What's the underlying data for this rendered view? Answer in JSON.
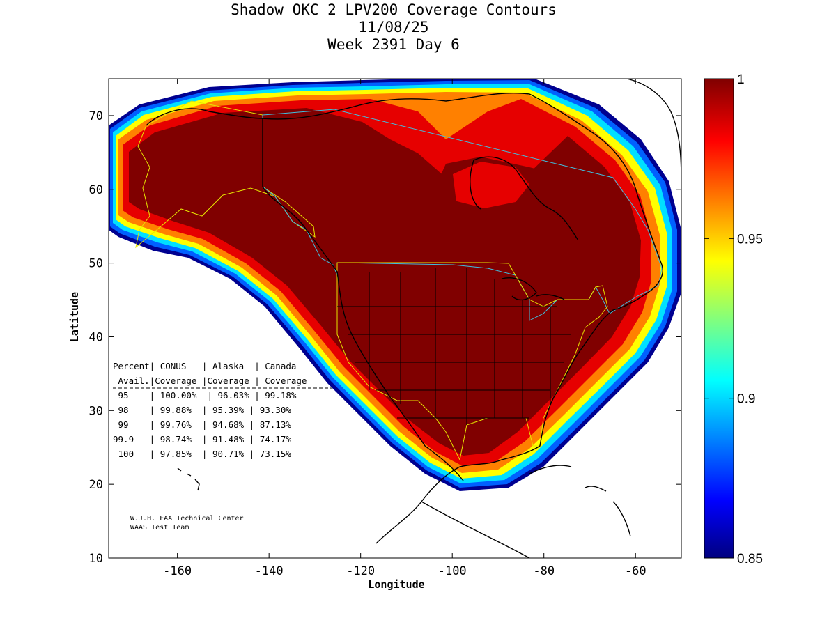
{
  "title": {
    "line1": "Shadow OKC 2 LPV200 Coverage Contours",
    "line2": "11/08/25",
    "line3": "Week 2391 Day 6"
  },
  "axes": {
    "xlabel": "Longitude",
    "ylabel": "Latitude",
    "xlim": [
      -175,
      -50
    ],
    "ylim": [
      10,
      75
    ],
    "xticks": [
      -160,
      -140,
      -120,
      -100,
      -80,
      -60
    ],
    "xtick_labels": [
      "-160",
      "-140",
      "-120",
      "-100",
      "-80",
      "-60"
    ],
    "yticks": [
      10,
      20,
      30,
      40,
      50,
      60,
      70
    ],
    "ytick_labels": [
      "10",
      "20",
      "30",
      "40",
      "50",
      "60",
      "70"
    ]
  },
  "colorbar": {
    "range": [
      0.85,
      1.0
    ],
    "ticks": [
      0.85,
      0.9,
      0.95,
      1.0
    ],
    "tick_labels": [
      "0.85",
      "0.9",
      "0.95",
      "1"
    ],
    "colormap": "jet"
  },
  "table": {
    "header1": "Percent| CONUS   | Alaska  | Canada",
    "header2": " Avail.|Coverage |Coverage | Coverage",
    "rule": "--------------------------------------",
    "rows": [
      " 95    | 100.00%  | 96.03% | 99.18%",
      " 98    | 99.88%  | 95.39% | 93.30%",
      " 99    | 99.76%  | 94.68% | 87.13%",
      "99.9   | 98.74%  | 91.48% | 74.17%",
      " 100   | 97.85%  | 90.71% | 73.15%"
    ]
  },
  "credit": {
    "line1": "W.J.H. FAA Technical Center",
    "line2": "WAAS Test Team"
  },
  "chart_data": {
    "type": "heatmap",
    "description_value": "LPV200 availability fraction",
    "zlim": [
      0.85,
      1.0
    ],
    "coverage": [
      {
        "percent_avail": "95",
        "conus": "100.00%",
        "alaska": "96.03%",
        "canada": "99.18%"
      },
      {
        "percent_avail": "98",
        "conus": "99.88%",
        "alaska": "95.39%",
        "canada": "93.30%"
      },
      {
        "percent_avail": "99",
        "conus": "99.76%",
        "alaska": "94.68%",
        "canada": "87.13%"
      },
      {
        "percent_avail": "99.9",
        "conus": "98.74%",
        "alaska": "91.48%",
        "canada": "74.17%"
      },
      {
        "percent_avail": "100",
        "conus": "97.85%",
        "alaska": "90.71%",
        "canada": "73.15%"
      }
    ]
  },
  "colors": {
    "dark_red": "#800000",
    "red": "#e60000",
    "orange": "#ff8000",
    "yellow": "#ffff00",
    "cyan": "#00e0ff",
    "blue": "#0040ff",
    "navy": "#000090",
    "region_outline": "#e6e600",
    "border_outline": "#40c0e0"
  }
}
